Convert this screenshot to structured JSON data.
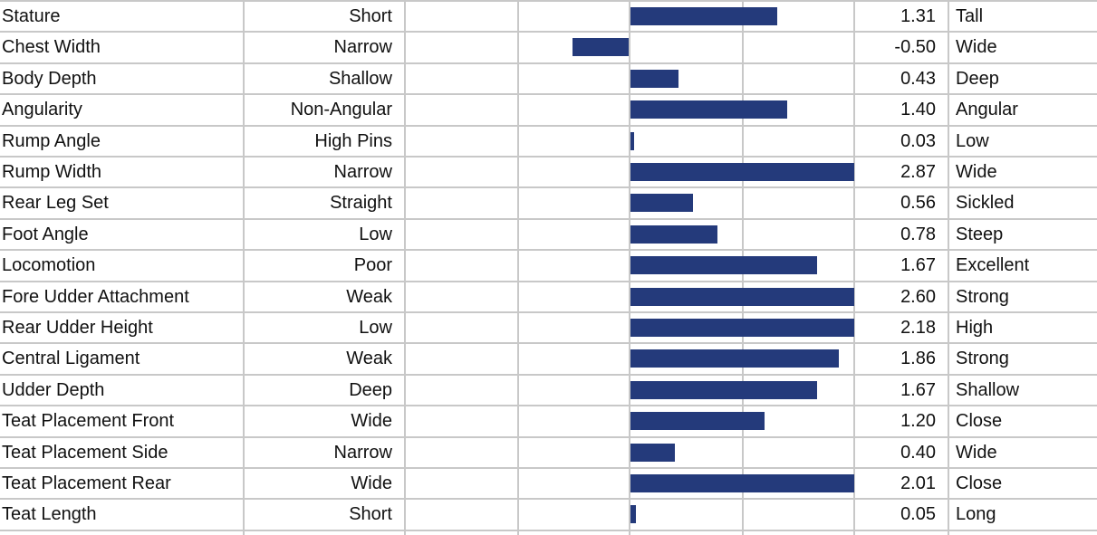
{
  "chart_data": {
    "type": "bar",
    "orientation": "horizontal",
    "columns": [
      "trait",
      "low_label",
      "bar",
      "value",
      "high_label"
    ],
    "bar_color": "#243a7b",
    "grid_color": "#c8c8c8",
    "grid": true,
    "xlim": [
      -2,
      2
    ],
    "rows": [
      {
        "trait": "Stature",
        "low": "Short",
        "value": 1.31,
        "value_text": "1.31",
        "high": "Tall"
      },
      {
        "trait": "Chest Width",
        "low": "Narrow",
        "value": -0.5,
        "value_text": "-0.50",
        "high": "Wide"
      },
      {
        "trait": "Body Depth",
        "low": "Shallow",
        "value": 0.43,
        "value_text": "0.43",
        "high": "Deep"
      },
      {
        "trait": "Angularity",
        "low": "Non-Angular",
        "value": 1.4,
        "value_text": "1.40",
        "high": "Angular"
      },
      {
        "trait": "Rump Angle",
        "low": "High Pins",
        "value": 0.03,
        "value_text": "0.03",
        "high": "Low"
      },
      {
        "trait": "Rump Width",
        "low": "Narrow",
        "value": 2.87,
        "value_text": "2.87",
        "high": "Wide"
      },
      {
        "trait": "Rear Leg Set",
        "low": "Straight",
        "value": 0.56,
        "value_text": "0.56",
        "high": "Sickled"
      },
      {
        "trait": "Foot Angle",
        "low": "Low",
        "value": 0.78,
        "value_text": "0.78",
        "high": "Steep"
      },
      {
        "trait": "Locomotion",
        "low": "Poor",
        "value": 1.67,
        "value_text": "1.67",
        "high": "Excellent"
      },
      {
        "trait": "Fore Udder Attachment",
        "low": "Weak",
        "value": 2.6,
        "value_text": "2.60",
        "high": "Strong"
      },
      {
        "trait": "Rear Udder Height",
        "low": "Low",
        "value": 2.18,
        "value_text": "2.18",
        "high": "High"
      },
      {
        "trait": "Central Ligament",
        "low": "Weak",
        "value": 1.86,
        "value_text": "1.86",
        "high": "Strong"
      },
      {
        "trait": "Udder Depth",
        "low": "Deep",
        "value": 1.67,
        "value_text": "1.67",
        "high": "Shallow"
      },
      {
        "trait": "Teat Placement Front",
        "low": "Wide",
        "value": 1.2,
        "value_text": "1.20",
        "high": "Close"
      },
      {
        "trait": "Teat Placement Side",
        "low": "Narrow",
        "value": 0.4,
        "value_text": "0.40",
        "high": "Wide"
      },
      {
        "trait": "Teat Placement Rear",
        "low": "Wide",
        "value": 2.01,
        "value_text": "2.01",
        "high": "Close"
      },
      {
        "trait": "Teat Length",
        "low": "Short",
        "value": 0.05,
        "value_text": "0.05",
        "high": "Long"
      }
    ]
  }
}
